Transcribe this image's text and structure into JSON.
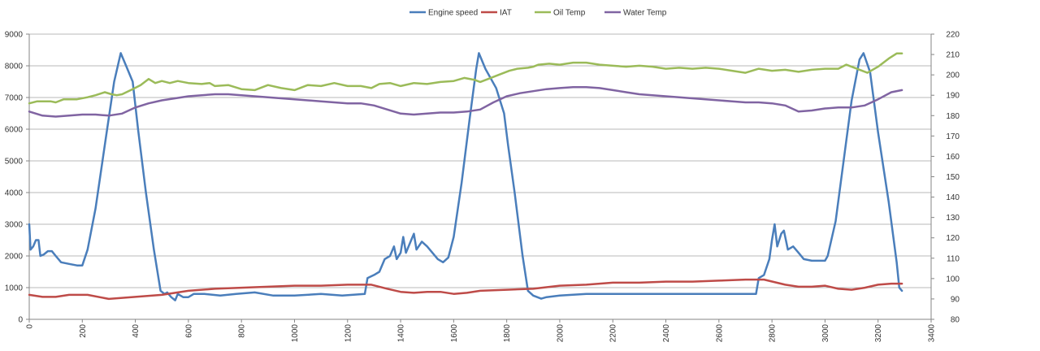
{
  "chart_data": {
    "type": "line",
    "legend_position": "top",
    "grid": true,
    "title": "",
    "xlabel": "",
    "ylabel": "",
    "xlim": [
      0,
      3400
    ],
    "x_ticks": [
      0,
      200,
      400,
      600,
      800,
      1000,
      1200,
      1400,
      1600,
      1800,
      2000,
      2200,
      2400,
      2600,
      2800,
      3000,
      3200,
      3400
    ],
    "y_left_lim": [
      0,
      9000
    ],
    "y_left_ticks": [
      0,
      1000,
      2000,
      3000,
      4000,
      5000,
      6000,
      7000,
      8000,
      9000
    ],
    "y_right_lim": [
      80,
      220
    ],
    "y_right_ticks": [
      80,
      90,
      100,
      110,
      120,
      130,
      140,
      150,
      160,
      170,
      180,
      190,
      200,
      210,
      220
    ],
    "series": [
      {
        "name": "Engine speed",
        "axis": "left",
        "color": "#4a7ebb",
        "points": [
          [
            0,
            3000
          ],
          [
            5,
            2200
          ],
          [
            15,
            2300
          ],
          [
            25,
            2500
          ],
          [
            35,
            2500
          ],
          [
            42,
            2000
          ],
          [
            55,
            2050
          ],
          [
            70,
            2150
          ],
          [
            85,
            2150
          ],
          [
            100,
            2000
          ],
          [
            120,
            1800
          ],
          [
            150,
            1750
          ],
          [
            180,
            1700
          ],
          [
            200,
            1700
          ],
          [
            220,
            2200
          ],
          [
            250,
            3500
          ],
          [
            290,
            5800
          ],
          [
            320,
            7500
          ],
          [
            345,
            8400
          ],
          [
            365,
            8000
          ],
          [
            390,
            7500
          ],
          [
            410,
            6000
          ],
          [
            440,
            4000
          ],
          [
            470,
            2200
          ],
          [
            495,
            900
          ],
          [
            510,
            800
          ],
          [
            520,
            850
          ],
          [
            535,
            700
          ],
          [
            550,
            600
          ],
          [
            560,
            800
          ],
          [
            580,
            700
          ],
          [
            600,
            700
          ],
          [
            620,
            800
          ],
          [
            660,
            800
          ],
          [
            720,
            750
          ],
          [
            780,
            800
          ],
          [
            850,
            850
          ],
          [
            920,
            750
          ],
          [
            1000,
            750
          ],
          [
            1100,
            800
          ],
          [
            1180,
            750
          ],
          [
            1265,
            800
          ],
          [
            1275,
            1300
          ],
          [
            1300,
            1400
          ],
          [
            1320,
            1500
          ],
          [
            1340,
            1900
          ],
          [
            1360,
            2000
          ],
          [
            1375,
            2300
          ],
          [
            1385,
            1900
          ],
          [
            1400,
            2100
          ],
          [
            1410,
            2600
          ],
          [
            1420,
            2100
          ],
          [
            1440,
            2500
          ],
          [
            1450,
            2700
          ],
          [
            1460,
            2200
          ],
          [
            1480,
            2450
          ],
          [
            1500,
            2300
          ],
          [
            1520,
            2100
          ],
          [
            1540,
            1900
          ],
          [
            1560,
            1800
          ],
          [
            1580,
            1950
          ],
          [
            1600,
            2600
          ],
          [
            1630,
            4300
          ],
          [
            1660,
            6300
          ],
          [
            1685,
            7900
          ],
          [
            1695,
            8400
          ],
          [
            1720,
            7900
          ],
          [
            1760,
            7300
          ],
          [
            1790,
            6500
          ],
          [
            1805,
            5500
          ],
          [
            1830,
            4000
          ],
          [
            1860,
            2000
          ],
          [
            1880,
            900
          ],
          [
            1900,
            750
          ],
          [
            1930,
            650
          ],
          [
            1950,
            700
          ],
          [
            2000,
            750
          ],
          [
            2100,
            800
          ],
          [
            2200,
            800
          ],
          [
            2300,
            800
          ],
          [
            2400,
            800
          ],
          [
            2500,
            800
          ],
          [
            2600,
            800
          ],
          [
            2700,
            800
          ],
          [
            2740,
            800
          ],
          [
            2750,
            1300
          ],
          [
            2770,
            1400
          ],
          [
            2790,
            1900
          ],
          [
            2800,
            2500
          ],
          [
            2810,
            3000
          ],
          [
            2820,
            2300
          ],
          [
            2835,
            2700
          ],
          [
            2845,
            2800
          ],
          [
            2860,
            2200
          ],
          [
            2880,
            2300
          ],
          [
            2900,
            2100
          ],
          [
            2920,
            1900
          ],
          [
            2950,
            1850
          ],
          [
            2980,
            1850
          ],
          [
            3000,
            1850
          ],
          [
            3010,
            2000
          ],
          [
            3040,
            3100
          ],
          [
            3070,
            5000
          ],
          [
            3100,
            6900
          ],
          [
            3130,
            8200
          ],
          [
            3145,
            8400
          ],
          [
            3170,
            7800
          ],
          [
            3200,
            5900
          ],
          [
            3240,
            3700
          ],
          [
            3270,
            1800
          ],
          [
            3280,
            1000
          ],
          [
            3290,
            900
          ]
        ]
      },
      {
        "name": "IAT",
        "axis": "right",
        "color": "#be4b48",
        "points": [
          [
            0,
            92
          ],
          [
            50,
            91
          ],
          [
            100,
            91
          ],
          [
            150,
            92
          ],
          [
            220,
            92
          ],
          [
            300,
            90
          ],
          [
            400,
            91
          ],
          [
            500,
            92
          ],
          [
            600,
            94
          ],
          [
            700,
            95
          ],
          [
            800,
            95.5
          ],
          [
            900,
            96
          ],
          [
            1000,
            96.5
          ],
          [
            1100,
            96.5
          ],
          [
            1200,
            97
          ],
          [
            1290,
            97
          ],
          [
            1350,
            95
          ],
          [
            1400,
            93.5
          ],
          [
            1450,
            93
          ],
          [
            1500,
            93.5
          ],
          [
            1550,
            93.5
          ],
          [
            1600,
            92.5
          ],
          [
            1650,
            93
          ],
          [
            1700,
            94
          ],
          [
            1800,
            94.5
          ],
          [
            1900,
            95
          ],
          [
            2000,
            96.5
          ],
          [
            2100,
            97
          ],
          [
            2200,
            98
          ],
          [
            2300,
            98
          ],
          [
            2400,
            98.5
          ],
          [
            2500,
            98.5
          ],
          [
            2600,
            99
          ],
          [
            2700,
            99.5
          ],
          [
            2770,
            99.5
          ],
          [
            2850,
            97
          ],
          [
            2900,
            96
          ],
          [
            2950,
            96
          ],
          [
            3000,
            96.5
          ],
          [
            3050,
            95
          ],
          [
            3100,
            94.5
          ],
          [
            3150,
            95.5
          ],
          [
            3200,
            97
          ],
          [
            3250,
            97.5
          ],
          [
            3290,
            97.5
          ]
        ]
      },
      {
        "name": "Oil Temp",
        "axis": "right",
        "color": "#9bbb59",
        "points": [
          [
            0,
            186
          ],
          [
            30,
            187
          ],
          [
            50,
            187
          ],
          [
            80,
            187
          ],
          [
            100,
            186.5
          ],
          [
            130,
            188
          ],
          [
            180,
            188
          ],
          [
            220,
            189
          ],
          [
            250,
            190
          ],
          [
            285,
            191.5
          ],
          [
            310,
            190.5
          ],
          [
            330,
            190
          ],
          [
            350,
            190.5
          ],
          [
            390,
            193
          ],
          [
            420,
            195
          ],
          [
            450,
            198
          ],
          [
            475,
            196
          ],
          [
            500,
            197
          ],
          [
            530,
            196
          ],
          [
            560,
            197
          ],
          [
            600,
            196
          ],
          [
            650,
            195.5
          ],
          [
            680,
            196
          ],
          [
            700,
            194.5
          ],
          [
            750,
            195
          ],
          [
            800,
            193
          ],
          [
            850,
            192.5
          ],
          [
            900,
            195
          ],
          [
            950,
            193.5
          ],
          [
            1000,
            192.5
          ],
          [
            1050,
            195
          ],
          [
            1100,
            194.5
          ],
          [
            1150,
            196
          ],
          [
            1200,
            194.5
          ],
          [
            1250,
            194.5
          ],
          [
            1290,
            193.5
          ],
          [
            1320,
            195.5
          ],
          [
            1360,
            196
          ],
          [
            1400,
            194.5
          ],
          [
            1450,
            196
          ],
          [
            1500,
            195.5
          ],
          [
            1550,
            196.5
          ],
          [
            1600,
            197
          ],
          [
            1640,
            198.5
          ],
          [
            1680,
            197.5
          ],
          [
            1700,
            196.5
          ],
          [
            1730,
            198
          ],
          [
            1770,
            200
          ],
          [
            1810,
            202
          ],
          [
            1840,
            203
          ],
          [
            1880,
            203.5
          ],
          [
            1900,
            204
          ],
          [
            1920,
            205
          ],
          [
            1960,
            205.5
          ],
          [
            2000,
            205
          ],
          [
            2050,
            206
          ],
          [
            2100,
            206
          ],
          [
            2150,
            205
          ],
          [
            2200,
            204.5
          ],
          [
            2250,
            204
          ],
          [
            2300,
            204.5
          ],
          [
            2350,
            204
          ],
          [
            2400,
            203
          ],
          [
            2450,
            203.5
          ],
          [
            2500,
            203
          ],
          [
            2550,
            203.5
          ],
          [
            2600,
            203
          ],
          [
            2650,
            202
          ],
          [
            2700,
            201
          ],
          [
            2750,
            203
          ],
          [
            2800,
            202
          ],
          [
            2850,
            202.5
          ],
          [
            2900,
            201.5
          ],
          [
            2950,
            202.5
          ],
          [
            3000,
            203
          ],
          [
            3050,
            203
          ],
          [
            3080,
            205
          ],
          [
            3120,
            203
          ],
          [
            3160,
            201
          ],
          [
            3200,
            204
          ],
          [
            3240,
            208
          ],
          [
            3270,
            210.5
          ],
          [
            3290,
            210.5
          ]
        ]
      },
      {
        "name": "Water Temp",
        "axis": "right",
        "color": "#8064a2",
        "points": [
          [
            0,
            182
          ],
          [
            50,
            180
          ],
          [
            100,
            179.5
          ],
          [
            150,
            180
          ],
          [
            200,
            180.5
          ],
          [
            250,
            180.5
          ],
          [
            300,
            180
          ],
          [
            350,
            181
          ],
          [
            400,
            184
          ],
          [
            450,
            186
          ],
          [
            500,
            187.5
          ],
          [
            550,
            188.5
          ],
          [
            600,
            189.5
          ],
          [
            650,
            190
          ],
          [
            700,
            190.5
          ],
          [
            750,
            190.5
          ],
          [
            800,
            190
          ],
          [
            850,
            189.5
          ],
          [
            900,
            189
          ],
          [
            950,
            188.5
          ],
          [
            1000,
            188
          ],
          [
            1050,
            187.5
          ],
          [
            1100,
            187
          ],
          [
            1150,
            186.5
          ],
          [
            1200,
            186
          ],
          [
            1250,
            186
          ],
          [
            1300,
            185
          ],
          [
            1350,
            183
          ],
          [
            1400,
            181
          ],
          [
            1450,
            180.5
          ],
          [
            1500,
            181
          ],
          [
            1550,
            181.5
          ],
          [
            1600,
            181.5
          ],
          [
            1650,
            182
          ],
          [
            1700,
            183
          ],
          [
            1750,
            186.5
          ],
          [
            1800,
            189.5
          ],
          [
            1850,
            191
          ],
          [
            1900,
            192
          ],
          [
            1950,
            193
          ],
          [
            2000,
            193.5
          ],
          [
            2050,
            194
          ],
          [
            2100,
            194
          ],
          [
            2150,
            193.5
          ],
          [
            2200,
            192.5
          ],
          [
            2250,
            191.5
          ],
          [
            2300,
            190.5
          ],
          [
            2350,
            190
          ],
          [
            2400,
            189.5
          ],
          [
            2450,
            189
          ],
          [
            2500,
            188.5
          ],
          [
            2550,
            188
          ],
          [
            2600,
            187.5
          ],
          [
            2650,
            187
          ],
          [
            2700,
            186.5
          ],
          [
            2750,
            186.5
          ],
          [
            2800,
            186
          ],
          [
            2850,
            185
          ],
          [
            2900,
            182
          ],
          [
            2950,
            182.5
          ],
          [
            3000,
            183.5
          ],
          [
            3050,
            184
          ],
          [
            3100,
            184
          ],
          [
            3150,
            185
          ],
          [
            3200,
            188
          ],
          [
            3250,
            191.5
          ],
          [
            3290,
            192.5
          ]
        ]
      }
    ]
  }
}
